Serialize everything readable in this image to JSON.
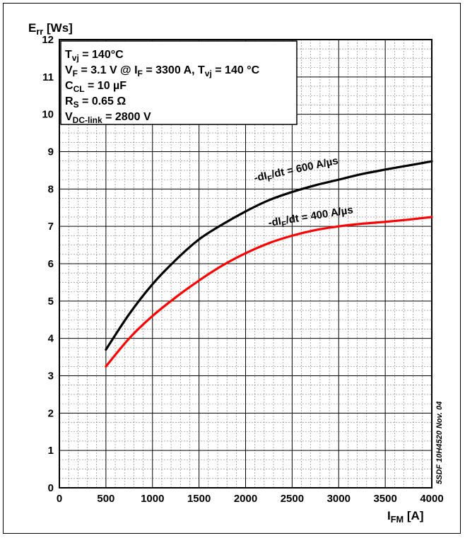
{
  "chart_data": {
    "type": "line",
    "title": "",
    "ylabel": {
      "main": "E",
      "sub": "rr",
      "unit": " [Ws]"
    },
    "xlabel": {
      "main": "I",
      "sub": "FM",
      "unit": " [A]"
    },
    "xlim": [
      0,
      4000
    ],
    "ylim": [
      0,
      12
    ],
    "x_ticks": [
      0,
      500,
      1000,
      1500,
      2000,
      2500,
      3000,
      3500,
      4000
    ],
    "y_ticks": [
      0,
      1,
      2,
      3,
      4,
      5,
      6,
      7,
      8,
      9,
      10,
      11,
      12
    ],
    "grid": true,
    "minor_grid": true,
    "conditions": [
      [
        {
          "t": "T"
        },
        {
          "t": "vj",
          "sub": true
        },
        {
          "t": " = 140°C"
        }
      ],
      [
        {
          "t": "V"
        },
        {
          "t": "F",
          "sub": true
        },
        {
          "t": " = 3.1 V @ I"
        },
        {
          "t": "F",
          "sub": true
        },
        {
          "t": " = 3300 A, T"
        },
        {
          "t": "vj",
          "sub": true
        },
        {
          "t": " = 140 °C"
        }
      ],
      [
        {
          "t": "C"
        },
        {
          "t": "CL",
          "sub": true
        },
        {
          "t": " = 10 µF"
        }
      ],
      [
        {
          "t": "R"
        },
        {
          "t": "S",
          "sub": true
        },
        {
          "t": " = 0.65 Ω"
        }
      ],
      [
        {
          "t": "V"
        },
        {
          "t": "DC-link",
          "sub": true
        },
        {
          "t": " = 2800 V"
        }
      ]
    ],
    "series": [
      {
        "label": [
          {
            "t": "-dI"
          },
          {
            "t": "F",
            "sub": true
          },
          {
            "t": "/dt = 600 A/µs"
          }
        ],
        "color": "#000000",
        "x": [
          500,
          750,
          1000,
          1250,
          1500,
          1750,
          2000,
          2250,
          2500,
          2750,
          3000,
          3250,
          3500,
          3750,
          4000
        ],
        "y": [
          3.7,
          4.65,
          5.45,
          6.1,
          6.65,
          7.05,
          7.4,
          7.7,
          7.92,
          8.1,
          8.25,
          8.4,
          8.52,
          8.63,
          8.74
        ]
      },
      {
        "label": [
          {
            "t": "-dI"
          },
          {
            "t": "F",
            "sub": true
          },
          {
            "t": "/dt = 400 A/µs"
          }
        ],
        "color": "#ff0000",
        "x": [
          500,
          750,
          1000,
          1250,
          1500,
          1750,
          2000,
          2250,
          2500,
          2750,
          3000,
          3250,
          3500,
          3750,
          4000
        ],
        "y": [
          3.25,
          4.0,
          4.6,
          5.1,
          5.55,
          5.95,
          6.28,
          6.55,
          6.75,
          6.9,
          7.0,
          7.07,
          7.12,
          7.18,
          7.25
        ]
      }
    ],
    "doc_id": "5SDF 10H4520 Nov. 04"
  }
}
